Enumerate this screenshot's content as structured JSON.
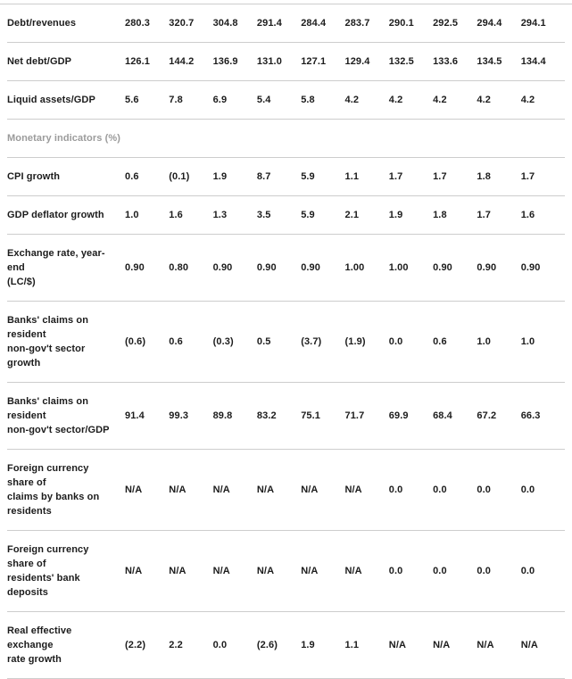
{
  "colors": {
    "text": "#1c1c1c",
    "section_header": "#9b9b9b",
    "divider": "#cdcdcd",
    "background": "#ffffff"
  },
  "table": {
    "columns_count": 10,
    "rows": [
      {
        "type": "data",
        "label": "Debt/revenues",
        "values": [
          "280.3",
          "320.7",
          "304.8",
          "291.4",
          "284.4",
          "283.7",
          "290.1",
          "292.5",
          "294.4",
          "294.1"
        ]
      },
      {
        "type": "data",
        "label": "Net debt/GDP",
        "values": [
          "126.1",
          "144.2",
          "136.9",
          "131.0",
          "127.1",
          "129.4",
          "132.5",
          "133.6",
          "134.5",
          "134.4"
        ]
      },
      {
        "type": "data",
        "label": "Liquid assets/GDP",
        "values": [
          "5.6",
          "7.8",
          "6.9",
          "5.4",
          "5.8",
          "4.2",
          "4.2",
          "4.2",
          "4.2",
          "4.2"
        ]
      },
      {
        "type": "section",
        "label": "Monetary indicators (%)",
        "values": []
      },
      {
        "type": "data",
        "label": "CPI growth",
        "values": [
          "0.6",
          "(0.1)",
          "1.9",
          "8.7",
          "5.9",
          "1.1",
          "1.7",
          "1.7",
          "1.8",
          "1.7"
        ]
      },
      {
        "type": "data",
        "label": "GDP deflator growth",
        "values": [
          "1.0",
          "1.6",
          "1.3",
          "3.5",
          "5.9",
          "2.1",
          "1.9",
          "1.8",
          "1.7",
          "1.6"
        ]
      },
      {
        "type": "data",
        "label": [
          "Exchange rate, year-end",
          "(LC/$)"
        ],
        "values": [
          "0.90",
          "0.80",
          "0.90",
          "0.90",
          "0.90",
          "1.00",
          "1.00",
          "0.90",
          "0.90",
          "0.90"
        ]
      },
      {
        "type": "data",
        "label": [
          "Banks' claims on resident",
          "non-gov't sector growth"
        ],
        "values": [
          "(0.6)",
          "0.6",
          "(0.3)",
          "0.5",
          "(3.7)",
          "(1.9)",
          "0.0",
          "0.6",
          "1.0",
          "1.0"
        ]
      },
      {
        "type": "data",
        "label": [
          "Banks' claims on resident",
          "non-gov't sector/GDP"
        ],
        "values": [
          "91.4",
          "99.3",
          "89.8",
          "83.2",
          "75.1",
          "71.7",
          "69.9",
          "68.4",
          "67.2",
          "66.3"
        ]
      },
      {
        "type": "data",
        "label": [
          "Foreign currency share of",
          "claims by banks on",
          "residents"
        ],
        "values": [
          "N/A",
          "N/A",
          "N/A",
          "N/A",
          "N/A",
          "N/A",
          "0.0",
          "0.0",
          "0.0",
          "0.0"
        ]
      },
      {
        "type": "data",
        "label": [
          "Foreign currency share of",
          "residents' bank deposits"
        ],
        "values": [
          "N/A",
          "N/A",
          "N/A",
          "N/A",
          "N/A",
          "N/A",
          "0.0",
          "0.0",
          "0.0",
          "0.0"
        ]
      },
      {
        "type": "data",
        "label": [
          "Real effective exchange",
          "rate growth"
        ],
        "values": [
          "(2.2)",
          "2.2",
          "0.0",
          "(2.6)",
          "1.9",
          "1.1",
          "N/A",
          "N/A",
          "N/A",
          "N/A"
        ]
      }
    ]
  }
}
